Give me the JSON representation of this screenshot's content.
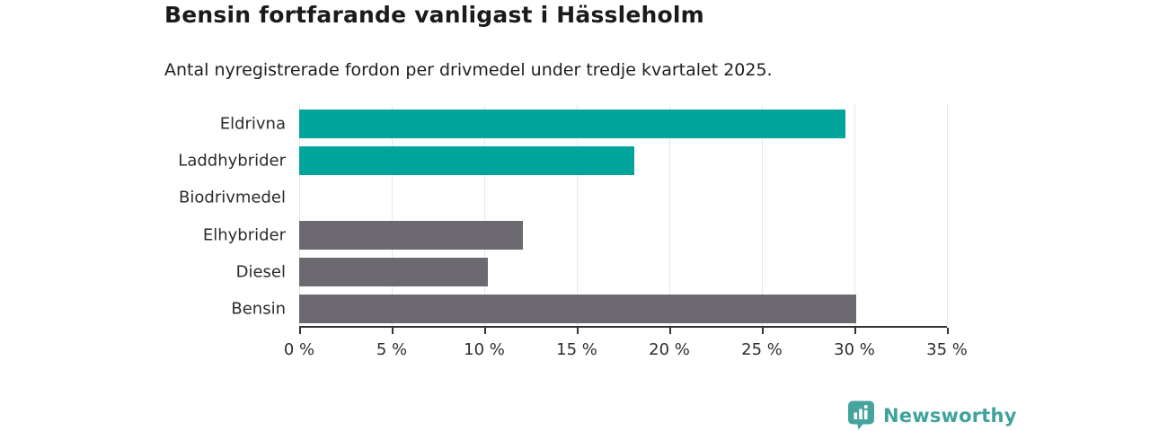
{
  "header": {
    "title": "Bensin fortfarande vanligast i Hässleholm",
    "subtitle": "Antal nyregistrerade fordon per drivmedel under tredje kvartalet 2025."
  },
  "chart_data": {
    "type": "bar",
    "orientation": "horizontal",
    "title": "Bensin fortfarande vanligast i Hässleholm",
    "subtitle": "Antal nyregistrerade fordon per drivmedel under tredje kvartalet 2025.",
    "categories": [
      "Eldrivna",
      "Laddhybrider",
      "Biodrivmedel",
      "Elhybrider",
      "Diesel",
      "Bensin"
    ],
    "values": [
      29.5,
      18.1,
      0,
      12.1,
      10.2,
      30.1
    ],
    "bar_colors": [
      "#00a49a",
      "#00a49a",
      "#6c6a70",
      "#6c6a70",
      "#6c6a70",
      "#6c6a70"
    ],
    "xlim": [
      0,
      35
    ],
    "x_ticks": [
      0,
      5,
      10,
      15,
      20,
      25,
      30,
      35
    ],
    "x_tick_labels": [
      "0 %",
      "5 %",
      "10 %",
      "15 %",
      "20 %",
      "25 %",
      "30 %",
      "35 %"
    ],
    "xlabel": "",
    "ylabel": "",
    "grid": true,
    "legend": false
  },
  "branding": {
    "logo_text": "Newsworthy",
    "logo_icon": "newsworthy-bubble-barchart-icon",
    "brand_color": "#3fa39c"
  },
  "colors": {
    "teal_bar": "#00a49a",
    "gray_bar": "#6c6a70",
    "gridline": "#e6e6e6",
    "axis": "#333333",
    "text": "#1b1b1b"
  }
}
